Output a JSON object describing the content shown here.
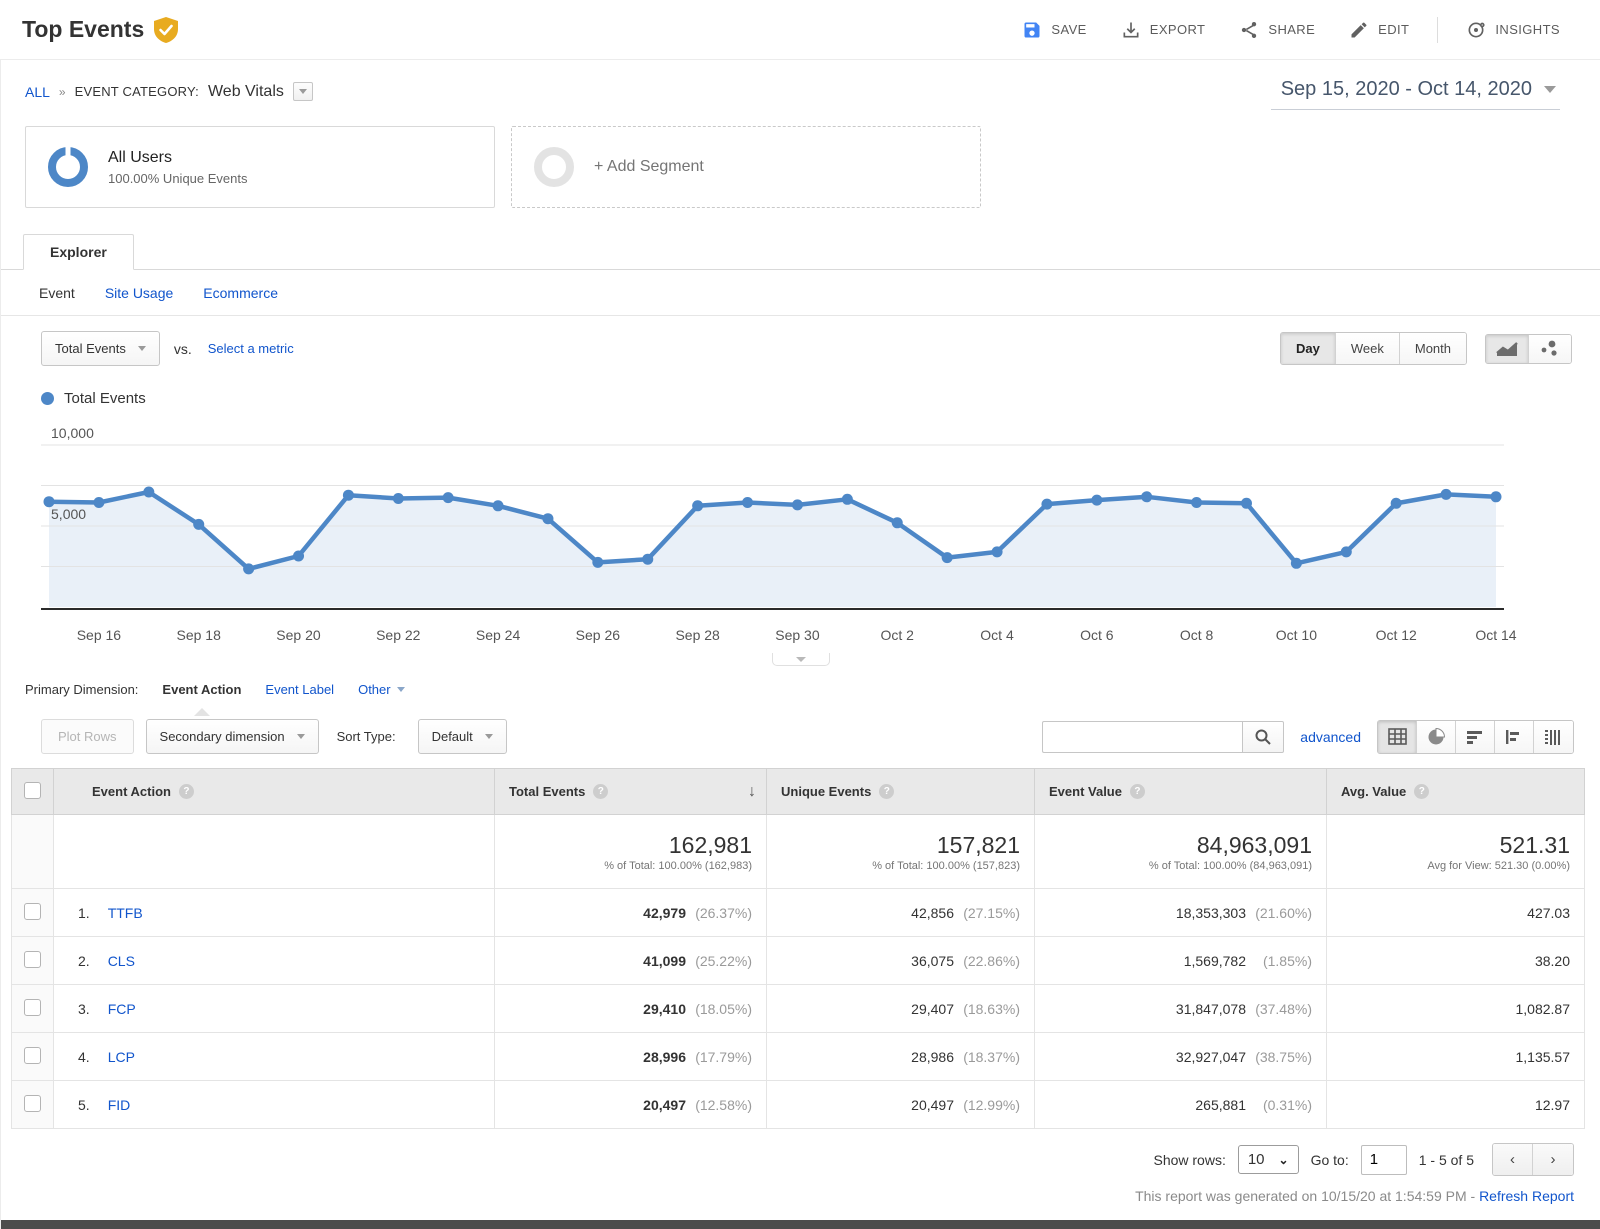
{
  "header": {
    "title": "Top Events",
    "actions": {
      "save": "SAVE",
      "export": "EXPORT",
      "share": "SHARE",
      "edit": "EDIT",
      "insights": "INSIGHTS"
    }
  },
  "breadcrumb": {
    "all": "ALL",
    "sep": "»",
    "category_label": "EVENT CATEGORY:",
    "category_value": "Web Vitals"
  },
  "date_range": "Sep 15, 2020 - Oct 14, 2020",
  "segments": {
    "all_users": {
      "title": "All Users",
      "subtitle": "100.00% Unique Events"
    },
    "add_segment": "+ Add Segment"
  },
  "tabs": {
    "explorer": "Explorer",
    "subtabs": [
      {
        "label": "Event",
        "active": true
      },
      {
        "label": "Site Usage",
        "active": false
      },
      {
        "label": "Ecommerce",
        "active": false
      }
    ]
  },
  "metric_bar": {
    "metric": "Total Events",
    "vs": "vs.",
    "select_metric": "Select a metric",
    "granularity": [
      "Day",
      "Week",
      "Month"
    ],
    "granularity_active": "Day"
  },
  "legend": {
    "label": "Total Events"
  },
  "chart_data": {
    "type": "line",
    "title": "Total Events by Day",
    "x": [
      "Sep 15",
      "Sep 16",
      "Sep 17",
      "Sep 18",
      "Sep 19",
      "Sep 20",
      "Sep 21",
      "Sep 22",
      "Sep 23",
      "Sep 24",
      "Sep 25",
      "Sep 26",
      "Sep 27",
      "Sep 28",
      "Sep 29",
      "Sep 30",
      "Oct 1",
      "Oct 2",
      "Oct 3",
      "Oct 4",
      "Oct 5",
      "Oct 6",
      "Oct 7",
      "Oct 8",
      "Oct 9",
      "Oct 10",
      "Oct 11",
      "Oct 12",
      "Oct 13",
      "Oct 14"
    ],
    "series": [
      {
        "name": "Total Events",
        "values": [
          6500,
          6450,
          7100,
          5100,
          2350,
          3150,
          6900,
          6700,
          6750,
          6250,
          5450,
          2750,
          2950,
          6250,
          6450,
          6300,
          6650,
          5200,
          3050,
          3400,
          6350,
          6600,
          6800,
          6450,
          6400,
          2700,
          3400,
          6400,
          6950,
          6800
        ]
      }
    ],
    "ylim": [
      0,
      10000
    ],
    "yticks": [
      {
        "v": 5000,
        "label": "5,000"
      },
      {
        "v": 10000,
        "label": "10,000"
      }
    ],
    "gridlines": [
      2500,
      5000,
      7500,
      10000
    ],
    "x_tick_labels": [
      "Sep 16",
      "Sep 18",
      "Sep 20",
      "Sep 22",
      "Sep 24",
      "Sep 26",
      "Sep 28",
      "Sep 30",
      "Oct 2",
      "Oct 4",
      "Oct 6",
      "Oct 8",
      "Oct 10",
      "Oct 12",
      "Oct 14"
    ],
    "line_color": "#4d87c7",
    "fill": true,
    "grid": true,
    "legend_position": "top-left"
  },
  "dimension_bar": {
    "label": "Primary Dimension:",
    "items": [
      {
        "label": "Event Action",
        "active": true
      },
      {
        "label": "Event Label",
        "active": false
      },
      {
        "label": "Other",
        "active": false,
        "dropdown": true
      }
    ]
  },
  "table_controls": {
    "plot_rows": "Plot Rows",
    "secondary_dimension": "Secondary dimension",
    "sort_type_label": "Sort Type:",
    "sort_type_value": "Default",
    "search_placeholder": "",
    "advanced": "advanced"
  },
  "table": {
    "columns": {
      "action": "Event Action",
      "total": "Total Events",
      "unique": "Unique Events",
      "value": "Event Value",
      "avg": "Avg. Value"
    },
    "totals": {
      "total": {
        "value": "162,981",
        "sub": "% of Total: 100.00% (162,983)"
      },
      "unique": {
        "value": "157,821",
        "sub": "% of Total: 100.00% (157,823)"
      },
      "value": {
        "value": "84,963,091",
        "sub": "% of Total: 100.00% (84,963,091)"
      },
      "avg": {
        "value": "521.31",
        "sub": "Avg for View: 521.30 (0.00%)"
      }
    },
    "rows": [
      {
        "num": "1.",
        "action": "TTFB",
        "total": "42,979",
        "total_pct": "(26.37%)",
        "unique": "42,856",
        "unique_pct": "(27.15%)",
        "event_value": "18,353,303",
        "event_value_pct": "(21.60%)",
        "avg": "427.03"
      },
      {
        "num": "2.",
        "action": "CLS",
        "total": "41,099",
        "total_pct": "(25.22%)",
        "unique": "36,075",
        "unique_pct": "(22.86%)",
        "event_value": "1,569,782",
        "event_value_pct": "(1.85%)",
        "avg": "38.20"
      },
      {
        "num": "3.",
        "action": "FCP",
        "total": "29,410",
        "total_pct": "(18.05%)",
        "unique": "29,407",
        "unique_pct": "(18.63%)",
        "event_value": "31,847,078",
        "event_value_pct": "(37.48%)",
        "avg": "1,082.87"
      },
      {
        "num": "4.",
        "action": "LCP",
        "total": "28,996",
        "total_pct": "(17.79%)",
        "unique": "28,986",
        "unique_pct": "(18.37%)",
        "event_value": "32,927,047",
        "event_value_pct": "(38.75%)",
        "avg": "1,135.57"
      },
      {
        "num": "5.",
        "action": "FID",
        "total": "20,497",
        "total_pct": "(12.58%)",
        "unique": "20,497",
        "unique_pct": "(12.99%)",
        "event_value": "265,881",
        "event_value_pct": "(0.31%)",
        "avg": "12.97"
      }
    ]
  },
  "footer": {
    "show_rows_label": "Show rows:",
    "show_rows_value": "10",
    "goto_label": "Go to:",
    "goto_value": "1",
    "range": "1 - 5 of 5"
  },
  "generated": {
    "text": "This report was generated on 10/15/20 at 1:54:59 PM - ",
    "link": "Refresh Report"
  }
}
